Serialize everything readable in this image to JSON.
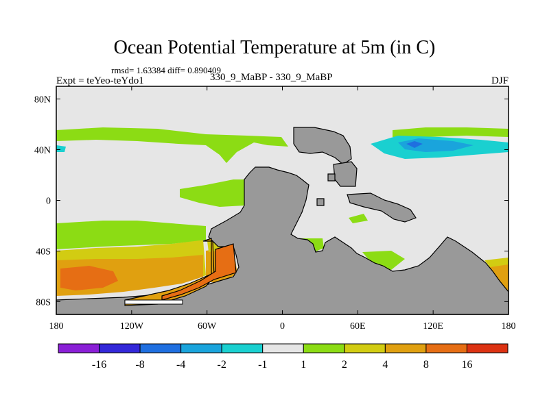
{
  "chart_data": {
    "type": "contour-map",
    "title": "Ocean Potential Temperature at 5m (in C)",
    "stats_text": "rmsd= 1.63384  diff= 0.890409",
    "left_subtitle": "Expt = teYeo-teYdo1",
    "center_subtitle": "330_9_MaBP - 330_9_MaBP",
    "right_subtitle": "DJF",
    "x_ticks": [
      "180",
      "120W",
      "60W",
      "0",
      "60E",
      "120E",
      "180"
    ],
    "y_ticks": [
      "80N",
      "40N",
      "0",
      "40S",
      "80S"
    ],
    "xlim": [
      -180,
      180
    ],
    "ylim": [
      -90,
      90
    ],
    "colorbar": {
      "labels": [
        "-16",
        "-8",
        "-4",
        "-2",
        "-1",
        "1",
        "2",
        "4",
        "8",
        "16"
      ],
      "colors": [
        "#8a1fd6",
        "#3328d9",
        "#1f6fe0",
        "#1aa4dc",
        "#1ad0d0",
        "#e6e6e6",
        "#8cdc14",
        "#d2cc12",
        "#e0a010",
        "#e66e14",
        "#dc3212"
      ]
    },
    "land_color": "#999999",
    "neutral_color": "#e6e6e6"
  }
}
